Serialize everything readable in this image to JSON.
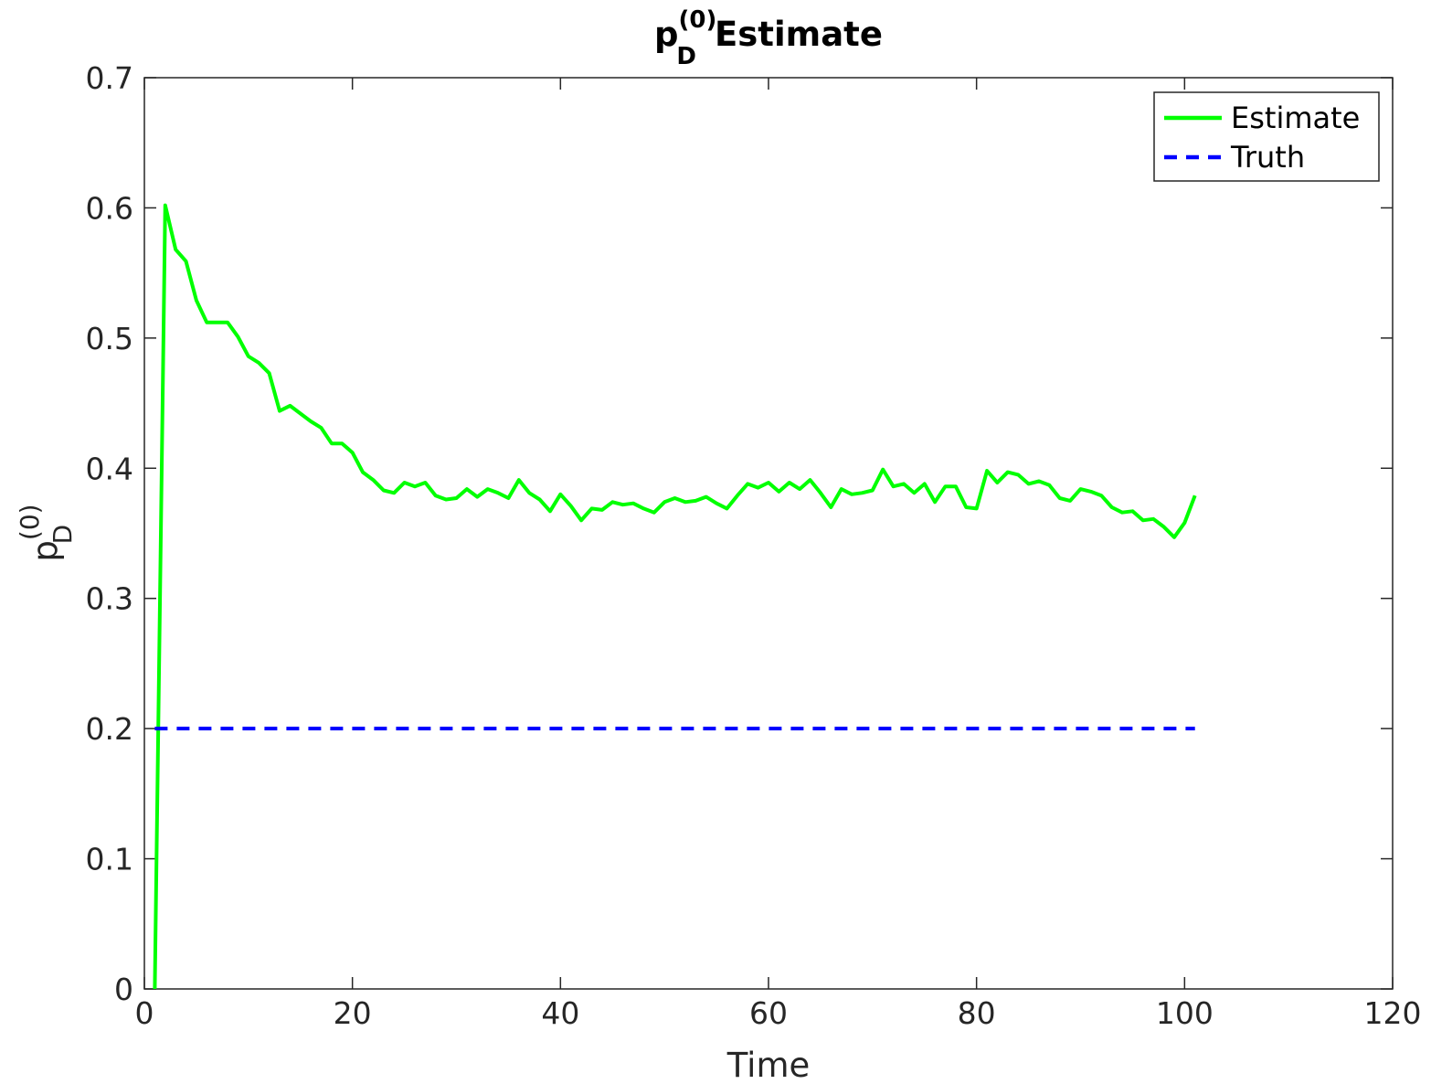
{
  "chart_data": {
    "type": "line",
    "title": {
      "base": "p",
      "subscript": "D",
      "superscript": "(0)",
      "suffix": "Estimate"
    },
    "xlabel": "Time",
    "ylabel": {
      "base": "p",
      "subscript": "D",
      "superscript": "(0)"
    },
    "xlim": [
      0,
      120
    ],
    "ylim": [
      0,
      0.7
    ],
    "xticks": [
      0,
      20,
      40,
      60,
      80,
      100,
      120
    ],
    "yticks": [
      0,
      0.1,
      0.2,
      0.3,
      0.4,
      0.5,
      0.6,
      0.7
    ],
    "xtick_labels": [
      "0",
      "20",
      "40",
      "60",
      "80",
      "100",
      "120"
    ],
    "ytick_labels": [
      "0",
      "0.1",
      "0.2",
      "0.3",
      "0.4",
      "0.5",
      "0.6",
      "0.7"
    ],
    "grid": false,
    "box": true,
    "legend_position": "top-right",
    "series": [
      {
        "name": "Estimate",
        "color": "#00ff00",
        "style": "solid",
        "x": [
          1,
          2,
          3,
          4,
          5,
          6,
          7,
          8,
          9,
          10,
          11,
          12,
          13,
          14,
          15,
          16,
          17,
          18,
          19,
          20,
          21,
          22,
          23,
          24,
          25,
          26,
          27,
          28,
          29,
          30,
          31,
          32,
          33,
          34,
          35,
          36,
          37,
          38,
          39,
          40,
          41,
          42,
          43,
          44,
          45,
          46,
          47,
          48,
          49,
          50,
          51,
          52,
          53,
          54,
          55,
          56,
          57,
          58,
          59,
          60,
          61,
          62,
          63,
          64,
          65,
          66,
          67,
          68,
          69,
          70,
          71,
          72,
          73,
          74,
          75,
          76,
          77,
          78,
          79,
          80,
          81,
          82,
          83,
          84,
          85,
          86,
          87,
          88,
          89,
          90,
          91,
          92,
          93,
          94,
          95,
          96,
          97,
          98,
          99,
          100,
          101
        ],
        "y": [
          0,
          0.602,
          0.568,
          0.559,
          0.529,
          0.512,
          0.512,
          0.512,
          0.501,
          0.486,
          0.481,
          0.473,
          0.444,
          0.448,
          0.442,
          0.436,
          0.431,
          0.419,
          0.419,
          0.412,
          0.397,
          0.391,
          0.383,
          0.381,
          0.389,
          0.386,
          0.389,
          0.379,
          0.376,
          0.377,
          0.384,
          0.378,
          0.384,
          0.381,
          0.377,
          0.391,
          0.381,
          0.376,
          0.367,
          0.38,
          0.371,
          0.36,
          0.369,
          0.368,
          0.374,
          0.372,
          0.373,
          0.369,
          0.366,
          0.374,
          0.377,
          0.374,
          0.375,
          0.378,
          0.373,
          0.369,
          0.379,
          0.388,
          0.385,
          0.389,
          0.382,
          0.389,
          0.384,
          0.391,
          0.381,
          0.37,
          0.384,
          0.38,
          0.381,
          0.383,
          0.399,
          0.386,
          0.388,
          0.381,
          0.388,
          0.374,
          0.386,
          0.386,
          0.37,
          0.369,
          0.398,
          0.389,
          0.397,
          0.395,
          0.388,
          0.39,
          0.387,
          0.377,
          0.375,
          0.384,
          0.382,
          0.379,
          0.37,
          0.366,
          0.367,
          0.36,
          0.361,
          0.355,
          0.347,
          0.358,
          0.379
        ]
      },
      {
        "name": "Truth",
        "color": "#0000ff",
        "style": "dashed",
        "x": [
          1,
          101
        ],
        "y": [
          0.2,
          0.2
        ]
      }
    ]
  }
}
